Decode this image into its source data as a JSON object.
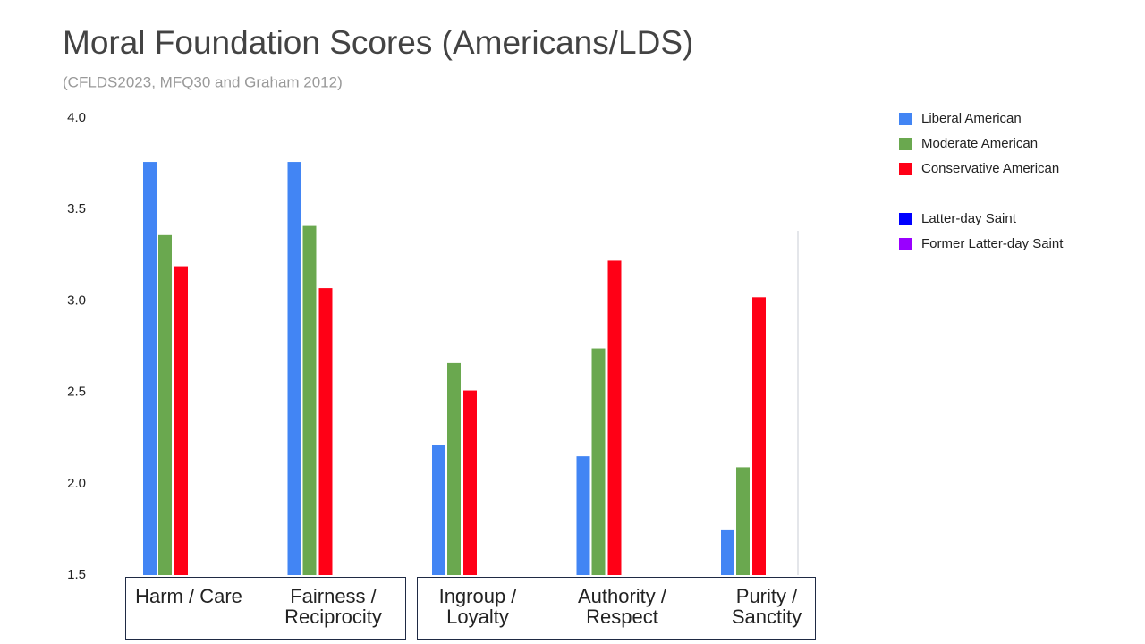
{
  "chart_data": {
    "type": "bar",
    "title": "Moral Foundation Scores (Americans/LDS)",
    "subtitle": "(CFLDS2023, MFQ30 and Graham 2012)",
    "categories": [
      "Harm / Care",
      "Fairness / Reciprocity",
      "Ingroup / Loyalty",
      "Authority / Respect",
      "Purity / Sanctity"
    ],
    "series": [
      {
        "name": "Liberal American",
        "color": "#4285f4",
        "values": [
          3.76,
          3.76,
          2.21,
          2.15,
          1.75
        ]
      },
      {
        "name": "Moderate American",
        "color": "#6aa84f",
        "values": [
          3.36,
          3.41,
          2.66,
          2.74,
          2.09
        ]
      },
      {
        "name": "Conservative American",
        "color": "#ff0016",
        "values": [
          3.19,
          3.07,
          2.51,
          3.22,
          3.02
        ]
      },
      {
        "name": "Latter-day Saint",
        "color": "#0000ff",
        "values": [
          null,
          null,
          null,
          null,
          null
        ]
      },
      {
        "name": "Former Latter-day Saint",
        "color": "#9900ff",
        "values": [
          null,
          null,
          null,
          null,
          null
        ]
      }
    ],
    "ylim": [
      1.5,
      4.0
    ],
    "yticks": [
      {
        "value": 1.5,
        "label": "1.5"
      },
      {
        "value": 2,
        "label": "2.0"
      },
      2.5,
      {
        "value": 3,
        "label": "3.0"
      },
      3.5,
      {
        "value": 4,
        "label": "4.0"
      }
    ],
    "legend": "right"
  }
}
